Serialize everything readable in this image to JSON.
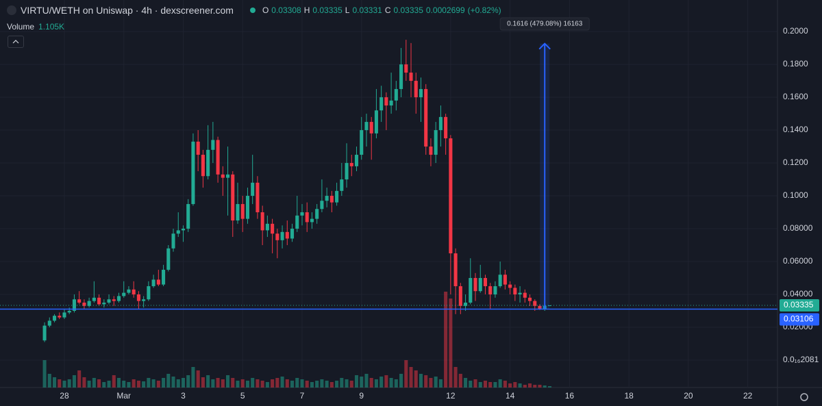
{
  "header": {
    "title": "VIRTU/WETH on Uniswap · 4h · dexscreener.com",
    "ohlc": [
      {
        "key": "O",
        "value": 0.03308
      },
      {
        "key": "H",
        "value": 0.03335
      },
      {
        "key": "L",
        "value": 0.03331
      },
      {
        "key": "C",
        "value": 0.03335
      }
    ],
    "change": 0.0002699,
    "change_pct": "(+0.82%)",
    "volume_label": "Volume",
    "volume_value": "1.105K"
  },
  "chart_data": {
    "type": "candlestick",
    "up_color": "#22ab94",
    "down_color": "#f23645",
    "grid": true,
    "xlim": [
      -9,
      148
    ],
    "xticks": [
      {
        "value": 4,
        "label": "28"
      },
      {
        "value": 16,
        "label": "Mar"
      },
      {
        "value": 28,
        "label": "3"
      },
      {
        "value": 40,
        "label": "5"
      },
      {
        "value": 52,
        "label": "7"
      },
      {
        "value": 64,
        "label": "9"
      },
      {
        "value": 82,
        "label": "12"
      },
      {
        "value": 94,
        "label": "14"
      },
      {
        "value": 106,
        "label": "16"
      },
      {
        "value": 118,
        "label": "18"
      },
      {
        "value": 130,
        "label": "20"
      },
      {
        "value": 142,
        "label": "22"
      }
    ],
    "ylim": [
      -0.01625,
      0.2192
    ],
    "yticks": [
      {
        "value": 2.081e-17,
        "label": "0.0₁₆2081"
      },
      {
        "value": 0.02,
        "label": "0.02000"
      },
      {
        "value": 0.04,
        "label": "0.04000"
      },
      {
        "value": 0.06,
        "label": "0.06000"
      },
      {
        "value": 0.08,
        "label": "0.08000"
      },
      {
        "value": 0.1,
        "label": "0.1000"
      },
      {
        "value": 0.12,
        "label": "0.1200"
      },
      {
        "value": 0.14,
        "label": "0.1400"
      },
      {
        "value": 0.16,
        "label": "0.1600"
      },
      {
        "value": 0.18,
        "label": "0.1800"
      },
      {
        "value": 0.2,
        "label": "0.2000"
      }
    ],
    "open": [
      0.012,
      0.021,
      0.024,
      0.027,
      0.026,
      0.029,
      0.03,
      0.037,
      0.035,
      0.033,
      0.036,
      0.038,
      0.034,
      0.035,
      0.037,
      0.036,
      0.039,
      0.041,
      0.043,
      0.04,
      0.036,
      0.037,
      0.045,
      0.049,
      0.046,
      0.055,
      0.068,
      0.077,
      0.079,
      0.08,
      0.095,
      0.133,
      0.125,
      0.112,
      0.128,
      0.134,
      0.113,
      0.111,
      0.113,
      0.085,
      0.095,
      0.086,
      0.1,
      0.108,
      0.09,
      0.079,
      0.083,
      0.077,
      0.073,
      0.078,
      0.074,
      0.08,
      0.088,
      0.09,
      0.084,
      0.086,
      0.092,
      0.097,
      0.1,
      0.096,
      0.103,
      0.11,
      0.12,
      0.118,
      0.125,
      0.14,
      0.145,
      0.138,
      0.152,
      0.16,
      0.155,
      0.158,
      0.165,
      0.18,
      0.175,
      0.17,
      0.16,
      0.165,
      0.13,
      0.125,
      0.14,
      0.148,
      0.135,
      0.065,
      0.045,
      0.033,
      0.035,
      0.05,
      0.042,
      0.05,
      0.045,
      0.04,
      0.045,
      0.052,
      0.046,
      0.044,
      0.04,
      0.041,
      0.038,
      0.036,
      0.033,
      0.031,
      0.03308
    ],
    "high": [
      0.023,
      0.026,
      0.028,
      0.029,
      0.031,
      0.032,
      0.04,
      0.042,
      0.037,
      0.038,
      0.048,
      0.04,
      0.037,
      0.04,
      0.039,
      0.041,
      0.048,
      0.045,
      0.048,
      0.042,
      0.039,
      0.048,
      0.052,
      0.055,
      0.058,
      0.07,
      0.08,
      0.09,
      0.082,
      0.098,
      0.138,
      0.14,
      0.128,
      0.143,
      0.145,
      0.136,
      0.118,
      0.13,
      0.115,
      0.108,
      0.1,
      0.105,
      0.125,
      0.112,
      0.094,
      0.088,
      0.086,
      0.08,
      0.082,
      0.085,
      0.083,
      0.1,
      0.095,
      0.096,
      0.09,
      0.095,
      0.11,
      0.105,
      0.103,
      0.108,
      0.12,
      0.132,
      0.125,
      0.13,
      0.148,
      0.15,
      0.148,
      0.165,
      0.167,
      0.163,
      0.175,
      0.17,
      0.19,
      0.195,
      0.193,
      0.175,
      0.172,
      0.168,
      0.135,
      0.145,
      0.155,
      0.15,
      0.137,
      0.068,
      0.047,
      0.04,
      0.062,
      0.053,
      0.058,
      0.052,
      0.047,
      0.048,
      0.06,
      0.055,
      0.048,
      0.046,
      0.045,
      0.043,
      0.04,
      0.037,
      0.034,
      0.034,
      0.03335
    ],
    "low": [
      0.011,
      0.02,
      0.023,
      0.025,
      0.025,
      0.028,
      0.029,
      0.034,
      0.031,
      0.032,
      0.035,
      0.033,
      0.032,
      0.034,
      0.033,
      0.035,
      0.038,
      0.04,
      0.038,
      0.031,
      0.032,
      0.036,
      0.044,
      0.045,
      0.045,
      0.054,
      0.066,
      0.075,
      0.072,
      0.078,
      0.094,
      0.115,
      0.105,
      0.11,
      0.12,
      0.108,
      0.1,
      0.088,
      0.075,
      0.083,
      0.078,
      0.083,
      0.095,
      0.086,
      0.07,
      0.075,
      0.065,
      0.062,
      0.068,
      0.07,
      0.072,
      0.078,
      0.082,
      0.078,
      0.08,
      0.083,
      0.09,
      0.093,
      0.09,
      0.094,
      0.1,
      0.105,
      0.112,
      0.115,
      0.122,
      0.13,
      0.122,
      0.135,
      0.145,
      0.14,
      0.15,
      0.152,
      0.16,
      0.17,
      0.16,
      0.15,
      0.145,
      0.125,
      0.118,
      0.12,
      0.13,
      0.125,
      0.04,
      0.028,
      0.028,
      0.03,
      0.034,
      0.036,
      0.041,
      0.04,
      0.031,
      0.038,
      0.044,
      0.043,
      0.04,
      0.036,
      0.035,
      0.035,
      0.033,
      0.03,
      0.0305,
      0.03,
      0.03331
    ],
    "close": [
      0.021,
      0.024,
      0.027,
      0.026,
      0.029,
      0.03,
      0.037,
      0.035,
      0.033,
      0.036,
      0.038,
      0.034,
      0.035,
      0.037,
      0.036,
      0.039,
      0.041,
      0.043,
      0.04,
      0.036,
      0.037,
      0.045,
      0.049,
      0.046,
      0.055,
      0.068,
      0.077,
      0.079,
      0.08,
      0.095,
      0.133,
      0.125,
      0.112,
      0.128,
      0.134,
      0.113,
      0.111,
      0.113,
      0.085,
      0.095,
      0.086,
      0.1,
      0.108,
      0.09,
      0.079,
      0.083,
      0.077,
      0.073,
      0.078,
      0.074,
      0.08,
      0.088,
      0.09,
      0.084,
      0.086,
      0.092,
      0.097,
      0.1,
      0.096,
      0.103,
      0.11,
      0.12,
      0.118,
      0.125,
      0.14,
      0.145,
      0.138,
      0.152,
      0.16,
      0.155,
      0.158,
      0.165,
      0.18,
      0.175,
      0.17,
      0.16,
      0.165,
      0.13,
      0.125,
      0.14,
      0.148,
      0.135,
      0.065,
      0.045,
      0.033,
      0.035,
      0.05,
      0.042,
      0.05,
      0.045,
      0.04,
      0.045,
      0.052,
      0.046,
      0.044,
      0.04,
      0.041,
      0.038,
      0.036,
      0.033,
      0.031,
      0.03308,
      0.03335
    ],
    "volume": [
      22000,
      11000,
      8250,
      6600,
      5500,
      6600,
      9900,
      13750,
      8250,
      5500,
      7700,
      6600,
      4400,
      5500,
      9900,
      7700,
      5500,
      4400,
      6600,
      5500,
      4950,
      7700,
      6600,
      5500,
      7700,
      11000,
      8800,
      6600,
      7700,
      9900,
      16500,
      13750,
      8250,
      9900,
      6600,
      7700,
      6600,
      9900,
      7700,
      5500,
      6600,
      5500,
      7700,
      6600,
      5500,
      4400,
      6600,
      7700,
      8800,
      6600,
      5500,
      7700,
      6600,
      5500,
      4400,
      5500,
      6600,
      5500,
      4400,
      5500,
      7700,
      6600,
      5500,
      9900,
      8800,
      11000,
      7700,
      6600,
      8800,
      9900,
      7700,
      6600,
      11000,
      22000,
      16500,
      13750,
      11000,
      9900,
      7700,
      8800,
      6600,
      77000,
      71500,
      16500,
      11000,
      7700,
      5500,
      6600,
      4400,
      5500,
      4400,
      4400,
      6600,
      5500,
      3300,
      4400,
      3300,
      2200,
      3300,
      2200,
      2200,
      1650,
      1105
    ],
    "last_price": 0.03335,
    "price_line": 0.03106,
    "measure": {
      "value": 0.1616,
      "value_label": "0.1616 (479.08%) 16163"
    }
  }
}
